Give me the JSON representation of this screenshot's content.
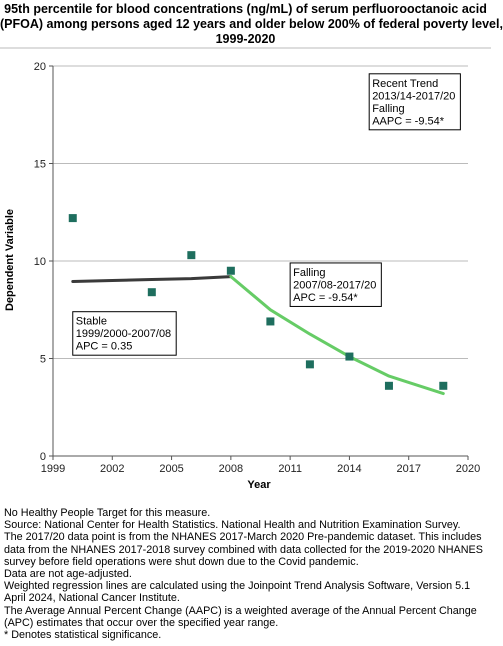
{
  "title_lines": [
    "95th percentile for blood concentrations (ng/mL) of serum perfluorooctanoic acid",
    "(PFOA) among persons aged 12 years and older below 200% of federal poverty level,",
    "1999-2020"
  ],
  "chart_data": {
    "type": "scatter",
    "xlabel": "Year",
    "ylabel": "Dependent Variable",
    "xlim": [
      1999,
      2020
    ],
    "ylim": [
      0,
      20
    ],
    "x_ticks": [
      1999,
      2002,
      2005,
      2008,
      2011,
      2014,
      2017,
      2020
    ],
    "y_ticks": [
      0,
      5,
      10,
      15,
      20
    ],
    "grid": "horizontal",
    "points": [
      {
        "x": 2000,
        "y": 12.2
      },
      {
        "x": 2004,
        "y": 8.4
      },
      {
        "x": 2006,
        "y": 10.3
      },
      {
        "x": 2008,
        "y": 9.5
      },
      {
        "x": 2010,
        "y": 6.9
      },
      {
        "x": 2012,
        "y": 4.7
      },
      {
        "x": 2014,
        "y": 5.1
      },
      {
        "x": 2016,
        "y": 3.6
      },
      {
        "x": 2018.75,
        "y": 3.6
      }
    ],
    "segments": [
      {
        "color": "#3a3a3a",
        "points": [
          [
            2000,
            8.95
          ],
          [
            2002,
            9.0
          ],
          [
            2004,
            9.05
          ],
          [
            2006,
            9.1
          ],
          [
            2008,
            9.2
          ]
        ]
      },
      {
        "color": "#66cc66",
        "points": [
          [
            2008,
            9.2
          ],
          [
            2010,
            7.5
          ],
          [
            2012,
            6.25
          ],
          [
            2014,
            5.1
          ],
          [
            2016,
            4.1
          ],
          [
            2018.75,
            3.2
          ]
        ]
      }
    ],
    "annotations": [
      {
        "lines": [
          "Stable",
          "1999/2000-2007/08",
          "APC =  0.35"
        ],
        "x": 2000.0,
        "y": 7.4
      },
      {
        "lines": [
          "Falling",
          "2007/08-2017/20",
          "APC = -9.54*"
        ],
        "x": 2011.0,
        "y": 9.9
      },
      {
        "lines": [
          "Recent Trend",
          "2013/14-2017/20",
          "Falling",
          "AAPC = -9.54*"
        ],
        "x": 2015.0,
        "y": 19.6
      }
    ],
    "colors": {
      "marker": "#1e6e5e",
      "grid": "#bbbbbb"
    }
  },
  "notes": [
    "No Healthy People Target for this measure.",
    "Source: National Center for Health Statistics. National Health and Nutrition Examination Survey.",
    "The 2017/20 data point is from the NHANES 2017-March 2020 Pre-pandemic dataset. This includes data from the NHANES 2017-2018 survey combined with data collected for the 2019-2020 NHANES survey before field operations were shut down due to the Covid pandemic.",
    "Data are not age-adjusted.",
    "Weighted regression lines are calculated using the Joinpoint Trend Analysis Software, Version 5.1 April 2024, National Cancer Institute.",
    "The Average Annual Percent Change (AAPC) is a weighted average of the Annual Percent Change (APC) estimates that occur over the specified year range.",
    "* Denotes statistical significance."
  ]
}
